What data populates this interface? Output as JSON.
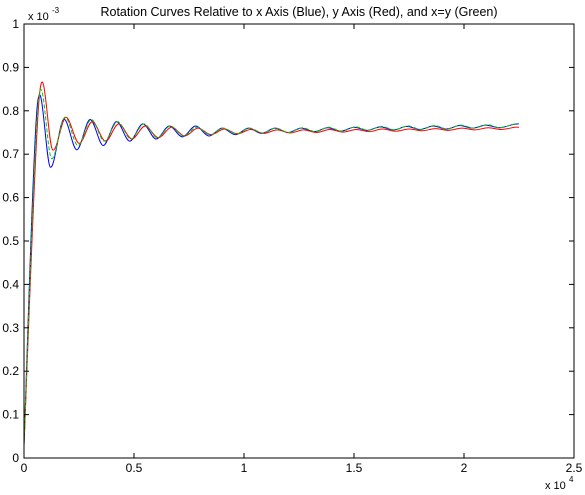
{
  "chart_data": {
    "type": "line",
    "title": "Rotation Curves Relative to x Axis (Blue), y Axis (Red), and x=y (Green)",
    "xlabel": "",
    "ylabel": "",
    "x_multiplier": {
      "base": "x 10",
      "exponent": "4"
    },
    "y_multiplier": {
      "base": "x 10",
      "exponent": "-3"
    },
    "xlim": [
      0,
      2.5
    ],
    "ylim": [
      0,
      1
    ],
    "x_ticks": [
      0,
      0.5,
      1,
      1.5,
      2,
      2.5
    ],
    "x_tick_labels": [
      "0",
      "0.5",
      "1",
      "1.5",
      "2",
      "2.5"
    ],
    "y_ticks": [
      0,
      0.1,
      0.2,
      0.3,
      0.4,
      0.5,
      0.6,
      0.7,
      0.8,
      0.9,
      1
    ],
    "y_tick_labels": [
      "0",
      "0.1",
      "0.2",
      "0.3",
      "0.4",
      "0.5",
      "0.6",
      "0.7",
      "0.8",
      "0.9",
      "1"
    ],
    "grid": false,
    "series": [
      {
        "color": "#0000ff",
        "x": [
          0,
          0.06,
          0.12,
          0.18,
          0.24,
          0.3,
          0.36,
          0.42,
          0.48,
          0.54,
          0.6,
          0.66,
          0.72,
          0.78,
          0.84,
          0.9,
          0.96,
          1.02,
          1.08,
          1.14,
          1.2,
          1.26,
          1.32,
          1.38,
          1.44,
          1.5,
          1.56,
          1.62,
          1.68,
          1.74,
          1.8,
          1.86,
          1.92,
          1.98,
          2.04,
          2.1,
          2.16,
          2.22,
          2.25
        ],
        "y": [
          0.03,
          0.81,
          0.67,
          0.78,
          0.71,
          0.78,
          0.72,
          0.775,
          0.73,
          0.77,
          0.735,
          0.765,
          0.74,
          0.765,
          0.742,
          0.76,
          0.745,
          0.76,
          0.748,
          0.76,
          0.75,
          0.76,
          0.752,
          0.761,
          0.753,
          0.762,
          0.755,
          0.763,
          0.756,
          0.764,
          0.757,
          0.765,
          0.758,
          0.766,
          0.76,
          0.767,
          0.761,
          0.768,
          0.77
        ]
      },
      {
        "color": "#ff0000",
        "x": [
          0,
          0.07,
          0.13,
          0.19,
          0.25,
          0.31,
          0.37,
          0.43,
          0.49,
          0.55,
          0.61,
          0.67,
          0.73,
          0.79,
          0.85,
          0.91,
          0.97,
          1.03,
          1.09,
          1.15,
          1.21,
          1.27,
          1.33,
          1.39,
          1.45,
          1.51,
          1.57,
          1.63,
          1.69,
          1.75,
          1.81,
          1.87,
          1.93,
          1.99,
          2.05,
          2.11,
          2.17,
          2.23,
          2.25
        ],
        "y": [
          0.03,
          0.835,
          0.71,
          0.785,
          0.725,
          0.775,
          0.73,
          0.77,
          0.735,
          0.765,
          0.738,
          0.762,
          0.742,
          0.76,
          0.745,
          0.758,
          0.747,
          0.757,
          0.748,
          0.756,
          0.749,
          0.756,
          0.75,
          0.757,
          0.751,
          0.757,
          0.752,
          0.758,
          0.753,
          0.758,
          0.754,
          0.759,
          0.755,
          0.76,
          0.756,
          0.761,
          0.757,
          0.762,
          0.762
        ]
      },
      {
        "color": "#00cc00",
        "x": [
          0,
          0.065,
          0.125,
          0.185,
          0.245,
          0.305,
          0.365,
          0.425,
          0.485,
          0.545,
          0.605,
          0.665,
          0.725,
          0.785,
          0.845,
          0.905,
          0.965,
          1.025,
          1.085,
          1.145,
          1.205,
          1.265,
          1.325,
          1.385,
          1.445,
          1.505,
          1.565,
          1.625,
          1.685,
          1.745,
          1.805,
          1.865,
          1.925,
          1.985,
          2.045,
          2.105,
          2.165,
          2.225,
          2.25
        ],
        "y": [
          0.03,
          0.82,
          0.69,
          0.785,
          0.72,
          0.78,
          0.73,
          0.775,
          0.735,
          0.77,
          0.738,
          0.765,
          0.742,
          0.762,
          0.745,
          0.76,
          0.747,
          0.76,
          0.749,
          0.76,
          0.75,
          0.761,
          0.752,
          0.762,
          0.753,
          0.763,
          0.755,
          0.764,
          0.756,
          0.765,
          0.757,
          0.766,
          0.758,
          0.767,
          0.76,
          0.768,
          0.761,
          0.769,
          0.77
        ]
      }
    ]
  }
}
